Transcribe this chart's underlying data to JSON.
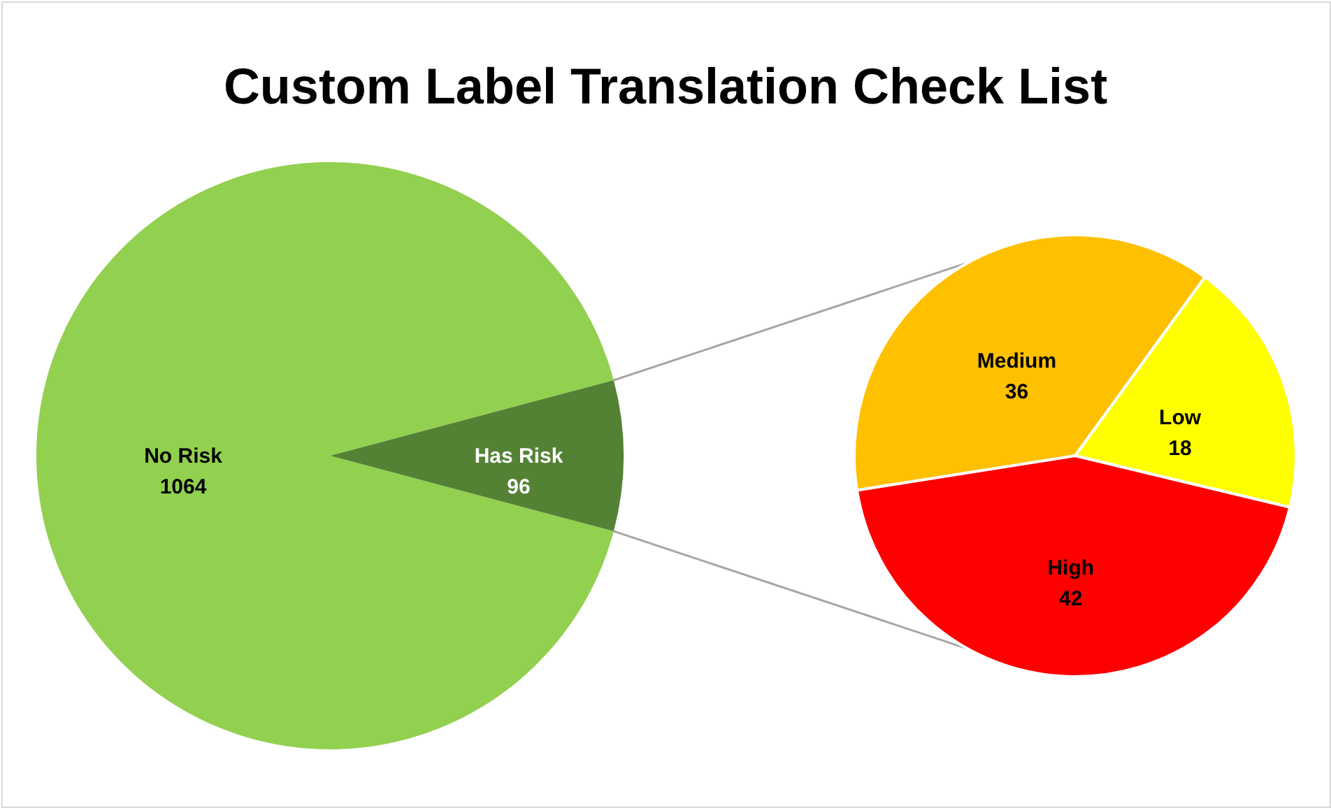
{
  "chart_data": [
    {
      "type": "pie",
      "title": "Custom Label Translation Check List",
      "categories": [
        "No Risk",
        "Has Risk"
      ],
      "values": [
        1064,
        96
      ],
      "colors": [
        "#92d050",
        "#548235"
      ],
      "data_labels": true
    },
    {
      "type": "pie",
      "categories": [
        "Medium",
        "Low",
        "High"
      ],
      "values": [
        36,
        18,
        42
      ],
      "colors": [
        "#ffc000",
        "#ffff00",
        "#ff0000"
      ],
      "data_labels": true
    }
  ]
}
